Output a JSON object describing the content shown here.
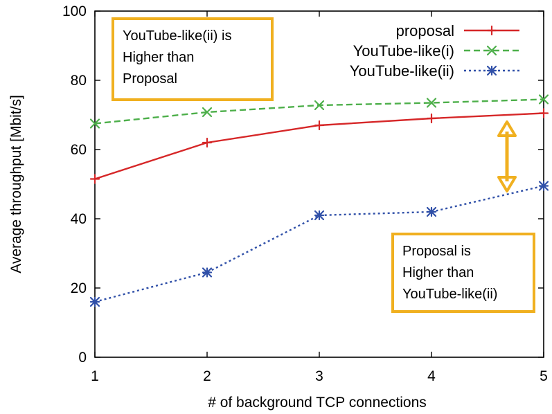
{
  "chart_data": {
    "type": "line",
    "x": [
      1,
      2,
      3,
      4,
      5
    ],
    "xlim": [
      1,
      5
    ],
    "ylim": [
      0,
      100
    ],
    "xticks": [
      "1",
      "2",
      "3",
      "4",
      "5"
    ],
    "yticks": [
      "0",
      "20",
      "40",
      "60",
      "80",
      "100"
    ],
    "xlabel": "# of background TCP connections",
    "ylabel": "Average throughput [Mbit/s]",
    "grid": false,
    "legend_position": "top-right",
    "series": [
      {
        "name": "proposal",
        "values": [
          51.5,
          62,
          67,
          69,
          70.5
        ],
        "color": "#d62728",
        "line_style": "solid",
        "marker": "plus"
      },
      {
        "name": "YouTube-like(i)",
        "values": [
          67.5,
          70.8,
          72.8,
          73.5,
          74.5
        ],
        "color": "#4daf4a",
        "line_style": "dashed",
        "marker": "x"
      },
      {
        "name": "YouTube-like(ii)",
        "values": [
          16,
          24.5,
          41,
          42,
          49.5
        ],
        "color": "#3050a8",
        "line_style": "dotted",
        "marker": "asterisk"
      }
    ],
    "annotations": [
      {
        "lines": [
          "YouTube-like(ii) is",
          "Higher than",
          "Proposal"
        ]
      },
      {
        "lines": [
          "Proposal is",
          "Higher than",
          "YouTube-like(ii)"
        ]
      }
    ],
    "callout_border_color": "#f0b020",
    "arrow_color": "#f0b020",
    "arrow_span": [
      48,
      68
    ]
  }
}
